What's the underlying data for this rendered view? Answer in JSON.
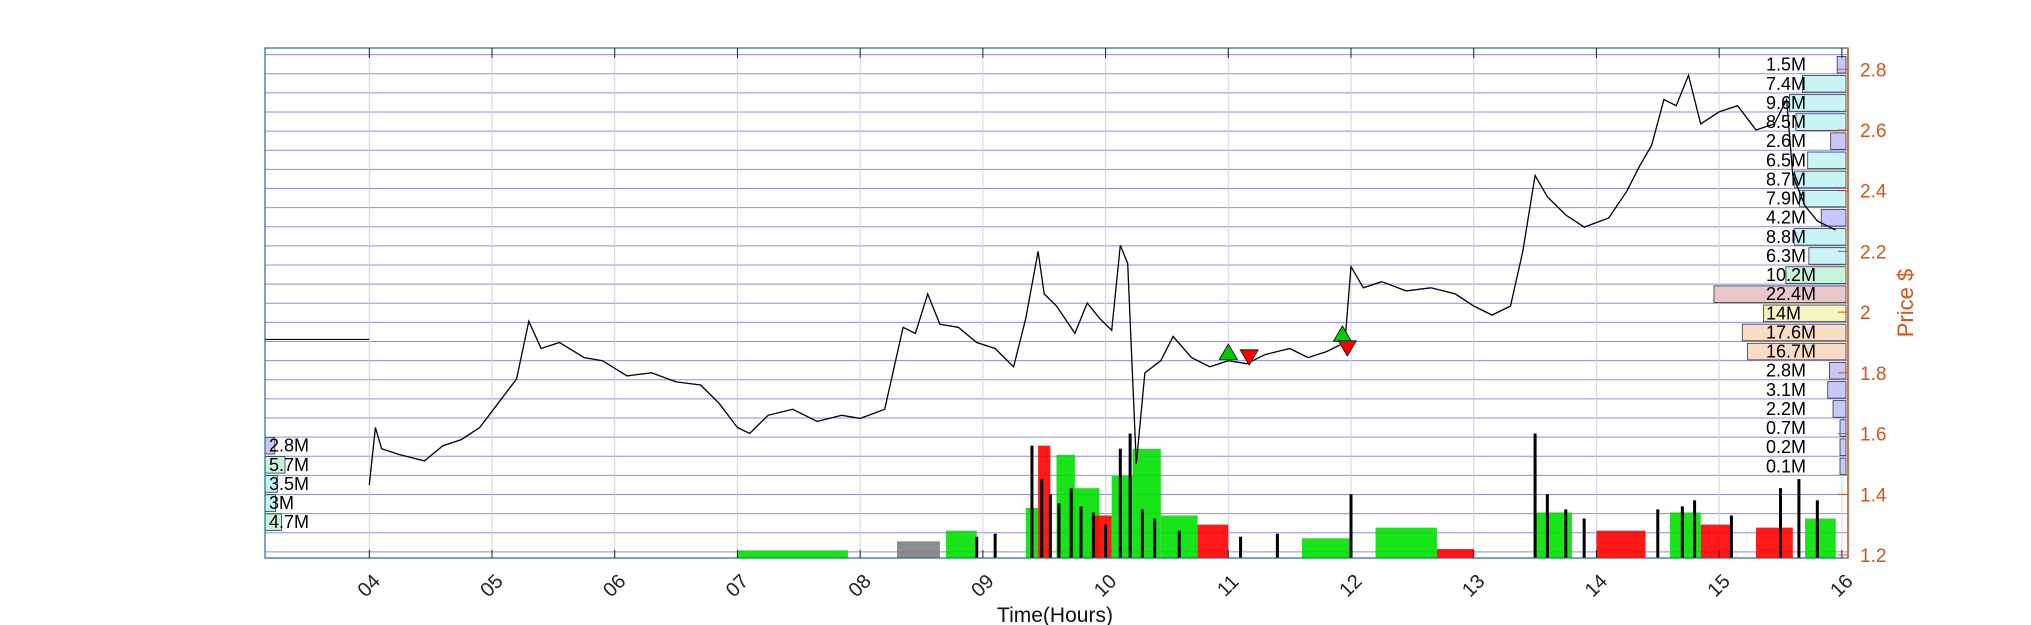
{
  "chart_data": {
    "type": "line",
    "xlabel": "Time(Hours)",
    "ylabel": "Price $",
    "x_ticks": [
      "04",
      "05",
      "06",
      "07",
      "08",
      "09",
      "10",
      "11",
      "12",
      "13",
      "14",
      "15",
      "16"
    ],
    "x_range": [
      3.15,
      16.05
    ],
    "y_ticks": [
      1.2,
      1.4,
      1.6,
      1.8,
      2,
      2.2,
      2.4,
      2.6,
      2.8
    ],
    "y_tick_labels": [
      "1.2",
      "1.4",
      "1.6",
      "1.8",
      "2",
      "2.2",
      "2.4",
      "2.6",
      "2.8"
    ],
    "ylim": [
      1.19,
      2.87
    ],
    "grid": true,
    "horizontal_grid_step": 0.063,
    "price_series": {
      "name": "",
      "color": "#000000",
      "points": [
        [
          4.0,
          1.43
        ],
        [
          4.05,
          1.62
        ],
        [
          4.1,
          1.55
        ],
        [
          4.25,
          1.53
        ],
        [
          4.45,
          1.51
        ],
        [
          4.6,
          1.56
        ],
        [
          4.75,
          1.58
        ],
        [
          4.9,
          1.62
        ],
        [
          5.05,
          1.7
        ],
        [
          5.2,
          1.78
        ],
        [
          5.3,
          1.97
        ],
        [
          5.4,
          1.88
        ],
        [
          5.55,
          1.9
        ],
        [
          5.75,
          1.85
        ],
        [
          5.9,
          1.84
        ],
        [
          6.1,
          1.79
        ],
        [
          6.3,
          1.8
        ],
        [
          6.5,
          1.77
        ],
        [
          6.7,
          1.76
        ],
        [
          6.85,
          1.7
        ],
        [
          7.0,
          1.62
        ],
        [
          7.1,
          1.6
        ],
        [
          7.25,
          1.66
        ],
        [
          7.45,
          1.68
        ],
        [
          7.65,
          1.64
        ],
        [
          7.85,
          1.66
        ],
        [
          8.0,
          1.65
        ],
        [
          8.2,
          1.68
        ],
        [
          8.35,
          1.95
        ],
        [
          8.45,
          1.93
        ],
        [
          8.55,
          2.06
        ],
        [
          8.65,
          1.96
        ],
        [
          8.8,
          1.95
        ],
        [
          8.95,
          1.9
        ],
        [
          9.1,
          1.88
        ],
        [
          9.25,
          1.82
        ],
        [
          9.35,
          1.98
        ],
        [
          9.45,
          2.2
        ],
        [
          9.5,
          2.06
        ],
        [
          9.6,
          2.02
        ],
        [
          9.7,
          1.96
        ],
        [
          9.75,
          1.93
        ],
        [
          9.85,
          2.03
        ],
        [
          9.95,
          1.98
        ],
        [
          10.05,
          1.94
        ],
        [
          10.12,
          2.22
        ],
        [
          10.18,
          2.16
        ],
        [
          10.25,
          1.5
        ],
        [
          10.32,
          1.8
        ],
        [
          10.45,
          1.84
        ],
        [
          10.55,
          1.92
        ],
        [
          10.7,
          1.85
        ],
        [
          10.85,
          1.82
        ],
        [
          11.0,
          1.84
        ],
        [
          11.15,
          1.83
        ],
        [
          11.3,
          1.86
        ],
        [
          11.5,
          1.88
        ],
        [
          11.65,
          1.85
        ],
        [
          11.8,
          1.87
        ],
        [
          11.95,
          1.9
        ],
        [
          12.0,
          2.15
        ],
        [
          12.1,
          2.08
        ],
        [
          12.25,
          2.1
        ],
        [
          12.45,
          2.07
        ],
        [
          12.65,
          2.08
        ],
        [
          12.85,
          2.06
        ],
        [
          13.0,
          2.02
        ],
        [
          13.15,
          1.99
        ],
        [
          13.3,
          2.02
        ],
        [
          13.4,
          2.2
        ],
        [
          13.5,
          2.45
        ],
        [
          13.6,
          2.38
        ],
        [
          13.75,
          2.32
        ],
        [
          13.9,
          2.28
        ],
        [
          14.1,
          2.31
        ],
        [
          14.25,
          2.4
        ],
        [
          14.35,
          2.48
        ],
        [
          14.45,
          2.55
        ],
        [
          14.55,
          2.7
        ],
        [
          14.65,
          2.68
        ],
        [
          14.75,
          2.78
        ],
        [
          14.85,
          2.62
        ],
        [
          15.0,
          2.66
        ],
        [
          15.15,
          2.68
        ],
        [
          15.3,
          2.6
        ],
        [
          15.45,
          2.62
        ],
        [
          15.55,
          2.7
        ],
        [
          15.6,
          2.45
        ],
        [
          15.7,
          2.35
        ],
        [
          15.8,
          2.3
        ],
        [
          15.95,
          2.27
        ]
      ]
    },
    "volume_bars": {
      "colors": {
        "up": "#00E000",
        "down": "#FF0000",
        "neutral": "#000000",
        "grey": "#808080"
      },
      "bins": [
        [
          7.0,
          7.9,
          1.215,
          "up"
        ],
        [
          8.3,
          8.65,
          1.245,
          "grey"
        ],
        [
          8.7,
          8.95,
          1.28,
          "up"
        ],
        [
          9.35,
          9.45,
          1.355,
          "up"
        ],
        [
          9.45,
          9.55,
          1.56,
          "down"
        ],
        [
          9.6,
          9.75,
          1.53,
          "up"
        ],
        [
          9.7,
          9.95,
          1.42,
          "up"
        ],
        [
          9.9,
          10.05,
          1.33,
          "down"
        ],
        [
          10.05,
          10.22,
          1.46,
          "up"
        ],
        [
          10.22,
          10.45,
          1.55,
          "up"
        ],
        [
          10.45,
          10.75,
          1.33,
          "up"
        ],
        [
          10.75,
          11.0,
          1.3,
          "down"
        ],
        [
          11.6,
          12.0,
          1.255,
          "up"
        ],
        [
          12.2,
          12.7,
          1.29,
          "up"
        ],
        [
          12.7,
          13.0,
          1.22,
          "down"
        ],
        [
          13.5,
          13.8,
          1.34,
          "up"
        ],
        [
          14.0,
          14.4,
          1.28,
          "down"
        ],
        [
          14.6,
          14.85,
          1.34,
          "up"
        ],
        [
          14.85,
          15.1,
          1.3,
          "down"
        ],
        [
          15.3,
          15.6,
          1.29,
          "down"
        ],
        [
          15.7,
          15.95,
          1.32,
          "up"
        ]
      ],
      "spikes": [
        [
          9.4,
          1.56
        ],
        [
          9.48,
          1.45
        ],
        [
          9.55,
          1.4
        ],
        [
          9.62,
          1.37
        ],
        [
          9.72,
          1.42
        ],
        [
          9.8,
          1.36
        ],
        [
          9.9,
          1.34
        ],
        [
          10.0,
          1.3
        ],
        [
          10.12,
          1.55
        ],
        [
          10.2,
          1.6
        ],
        [
          10.3,
          1.35
        ],
        [
          10.4,
          1.32
        ],
        [
          10.6,
          1.28
        ],
        [
          11.1,
          1.26
        ],
        [
          11.4,
          1.27
        ],
        [
          12.0,
          1.4
        ],
        [
          13.5,
          1.6
        ],
        [
          13.6,
          1.4
        ],
        [
          13.75,
          1.35
        ],
        [
          13.9,
          1.32
        ],
        [
          14.5,
          1.35
        ],
        [
          14.7,
          1.36
        ],
        [
          14.8,
          1.38
        ],
        [
          15.1,
          1.33
        ],
        [
          15.5,
          1.42
        ],
        [
          15.65,
          1.45
        ],
        [
          15.8,
          1.38
        ],
        [
          9.1,
          1.27
        ],
        [
          8.95,
          1.26
        ]
      ],
      "baseline": 1.19
    },
    "trade_markers": [
      {
        "x": 11.0,
        "y": 1.865,
        "type": "buy",
        "color": "#00CC00"
      },
      {
        "x": 11.17,
        "y": 1.855,
        "type": "sell",
        "color": "#FF0000"
      },
      {
        "x": 11.93,
        "y": 1.925,
        "type": "buy",
        "color": "#00CC00"
      },
      {
        "x": 11.97,
        "y": 1.885,
        "type": "sell",
        "color": "#FF0000"
      }
    ],
    "volume_profile_right": [
      {
        "label": "1.5M",
        "price": 2.815,
        "value": 1.5,
        "color": "#C8C8F8"
      },
      {
        "label": "7.4M",
        "price": 2.752,
        "value": 7.4,
        "color": "#C8F4F4"
      },
      {
        "label": "9.6M",
        "price": 2.689,
        "value": 9.6,
        "color": "#C8F4F4"
      },
      {
        "label": "8.5M",
        "price": 2.626,
        "value": 8.5,
        "color": "#C8F4F4"
      },
      {
        "label": "2.6M",
        "price": 2.563,
        "value": 2.6,
        "color": "#C8C8F8"
      },
      {
        "label": "6.5M",
        "price": 2.5,
        "value": 6.5,
        "color": "#C8F4F4"
      },
      {
        "label": "8.7M",
        "price": 2.437,
        "value": 8.7,
        "color": "#C8F4F4"
      },
      {
        "label": "7.9M",
        "price": 2.374,
        "value": 7.9,
        "color": "#C8F4F4"
      },
      {
        "label": "4.2M",
        "price": 2.311,
        "value": 4.2,
        "color": "#C8C8F8"
      },
      {
        "label": "8.8M",
        "price": 2.248,
        "value": 8.8,
        "color": "#C8F4F4"
      },
      {
        "label": "6.3M",
        "price": 2.185,
        "value": 6.3,
        "color": "#C8F4F4"
      },
      {
        "label": "10.2M",
        "price": 2.122,
        "value": 10.2,
        "color": "#C8F4DC"
      },
      {
        "label": "22.4M",
        "price": 2.059,
        "value": 22.4,
        "color": "#E8C8C8"
      },
      {
        "label": "14M",
        "price": 1.996,
        "value": 14.0,
        "color": "#F8F4C0"
      },
      {
        "label": "17.6M",
        "price": 1.933,
        "value": 17.6,
        "color": "#F8DCC4"
      },
      {
        "label": "16.7M",
        "price": 1.87,
        "value": 16.7,
        "color": "#F8DCC4"
      },
      {
        "label": "2.8M",
        "price": 1.807,
        "value": 2.8,
        "color": "#C8C8F8"
      },
      {
        "label": "3.1M",
        "price": 1.744,
        "value": 3.1,
        "color": "#C8C8F8"
      },
      {
        "label": "2.2M",
        "price": 1.681,
        "value": 2.2,
        "color": "#C8C8F8"
      },
      {
        "label": "0.7M",
        "price": 1.618,
        "value": 0.7,
        "color": "#C8C8F8"
      },
      {
        "label": "0.2M",
        "price": 1.555,
        "value": 0.2,
        "color": "#C8C8F8"
      },
      {
        "label": "0.1M",
        "price": 1.492,
        "value": 0.1,
        "color": "#C8C8F8"
      }
    ],
    "volume_profile_left": [
      {
        "label": "2.8M",
        "price": 1.56,
        "value": 2.8,
        "color": "#C8C8F8"
      },
      {
        "label": "5.7M",
        "price": 1.497,
        "value": 5.7,
        "color": "#C8F4DC"
      },
      {
        "label": "3.5M",
        "price": 1.434,
        "value": 3.5,
        "color": "#C8F4F4"
      },
      {
        "label": "3M",
        "price": 1.371,
        "value": 3.0,
        "color": "#C8F4F4"
      },
      {
        "label": "4.7M",
        "price": 1.308,
        "value": 4.7,
        "color": "#C8F4DC"
      }
    ],
    "reference_line": {
      "x": [
        3.15,
        4.0
      ],
      "y": 1.91,
      "color": "#000000"
    }
  }
}
